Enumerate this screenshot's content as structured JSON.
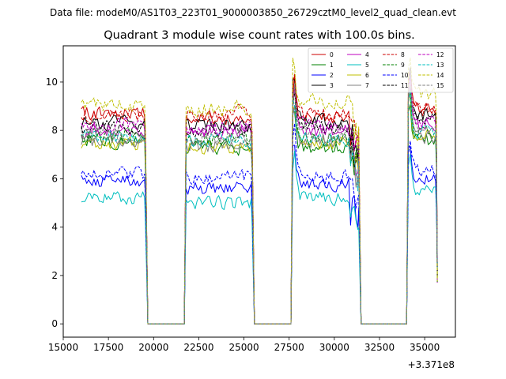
{
  "figure": {
    "suptitle": "Data file: modeM0/AS1T03_223T01_9000003850_26729cztM0_level2_quad_clean.evt"
  },
  "chart_data": {
    "type": "line",
    "title": "Quadrant 3 module wise count rates with 100.0s bins.",
    "xlabel": "",
    "ylabel": "",
    "x_offset_label": "+3.371e8",
    "xlim": [
      15000,
      36700
    ],
    "ylim": [
      -0.55,
      11.5
    ],
    "xticks": [
      15000,
      17500,
      20000,
      22500,
      25000,
      27500,
      30000,
      32500,
      35000
    ],
    "xtick_labels": [
      "15000",
      "17500",
      "20000",
      "22500",
      "25000",
      "27500",
      "30000",
      "32500",
      "35000"
    ],
    "yticks": [
      0,
      2,
      4,
      6,
      8,
      10
    ],
    "ytick_labels": [
      "0",
      "2",
      "4",
      "6",
      "8",
      "10"
    ],
    "legend_position": "top-right",
    "segments": [
      {
        "start": 16000,
        "end": 19600
      },
      {
        "start": 21800,
        "end": 25500
      },
      {
        "start": 27700,
        "end": 31400
      },
      {
        "start": 34100,
        "end": 35700
      }
    ],
    "gap_value": 0,
    "series": [
      {
        "name": "0",
        "color": "#cc0000",
        "dash": "solid",
        "levels": [
          8.7,
          8.5,
          8.6,
          8.8
        ]
      },
      {
        "name": "1",
        "color": "#008000",
        "dash": "solid",
        "levels": [
          7.6,
          7.3,
          7.3,
          7.6
        ]
      },
      {
        "name": "2",
        "color": "#0000ff",
        "dash": "solid",
        "levels": [
          5.9,
          5.6,
          5.8,
          6.0
        ]
      },
      {
        "name": "3",
        "color": "#000000",
        "dash": "solid",
        "levels": [
          8.3,
          8.2,
          8.4,
          8.6
        ]
      },
      {
        "name": "4",
        "color": "#bf00bf",
        "dash": "solid",
        "levels": [
          8.0,
          7.9,
          8.0,
          8.2
        ]
      },
      {
        "name": "5",
        "color": "#00bfbf",
        "dash": "solid",
        "levels": [
          5.2,
          5.0,
          5.2,
          5.5
        ]
      },
      {
        "name": "6",
        "color": "#bfbf00",
        "dash": "solid",
        "levels": [
          7.4,
          7.3,
          7.5,
          7.8
        ]
      },
      {
        "name": "7",
        "color": "#808080",
        "dash": "solid",
        "levels": [
          7.5,
          7.4,
          7.5,
          7.7
        ]
      },
      {
        "name": "8",
        "color": "#cc0000",
        "dash": "dashed",
        "levels": [
          8.6,
          8.7,
          8.7,
          8.9
        ]
      },
      {
        "name": "9",
        "color": "#008000",
        "dash": "dashed",
        "levels": [
          7.8,
          7.6,
          7.7,
          7.9
        ]
      },
      {
        "name": "10",
        "color": "#0000ff",
        "dash": "dashed",
        "levels": [
          6.2,
          6.1,
          6.1,
          6.3
        ]
      },
      {
        "name": "11",
        "color": "#000000",
        "dash": "dashed",
        "levels": [
          8.1,
          8.0,
          8.2,
          8.4
        ]
      },
      {
        "name": "12",
        "color": "#bf00bf",
        "dash": "dashed",
        "levels": [
          8.2,
          8.1,
          8.2,
          8.4
        ]
      },
      {
        "name": "13",
        "color": "#00bfbf",
        "dash": "dashed",
        "levels": [
          7.7,
          7.6,
          7.7,
          7.9
        ]
      },
      {
        "name": "14",
        "color": "#bfbf00",
        "dash": "dashed",
        "levels": [
          9.0,
          8.9,
          9.2,
          9.5
        ]
      },
      {
        "name": "15",
        "color": "#808080",
        "dash": "dashed",
        "levels": [
          7.8,
          7.7,
          7.8,
          8.0
        ]
      }
    ]
  }
}
